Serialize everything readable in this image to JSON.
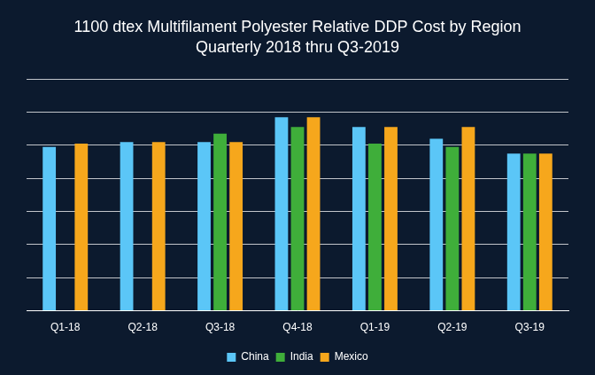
{
  "chart_data": {
    "type": "bar",
    "title": "1100 dtex Multifilament Polyester Relative DDP Cost by Region",
    "subtitle": "Quarterly 2018 thru Q3-2019",
    "categories": [
      "Q1-18",
      "Q2-18",
      "Q3-18",
      "Q4-18",
      "Q1-19",
      "Q2-19",
      "Q3-19"
    ],
    "series": [
      {
        "name": "China",
        "color": "#5bc6f7",
        "values": [
          4.95,
          5.1,
          5.1,
          5.85,
          5.55,
          5.2,
          4.75
        ]
      },
      {
        "name": "India",
        "color": "#3fae3a",
        "values": [
          null,
          null,
          5.35,
          5.55,
          5.05,
          4.95,
          4.75
        ]
      },
      {
        "name": "Mexico",
        "color": "#f6a71c",
        "values": [
          5.05,
          5.1,
          5.1,
          5.85,
          5.55,
          5.55,
          4.75
        ]
      }
    ],
    "ylim": [
      0,
      7
    ],
    "yticks": [
      0,
      1,
      2,
      3,
      4,
      5,
      6,
      7
    ],
    "grid": true,
    "legend": "bottom",
    "tick_labels": "x"
  }
}
